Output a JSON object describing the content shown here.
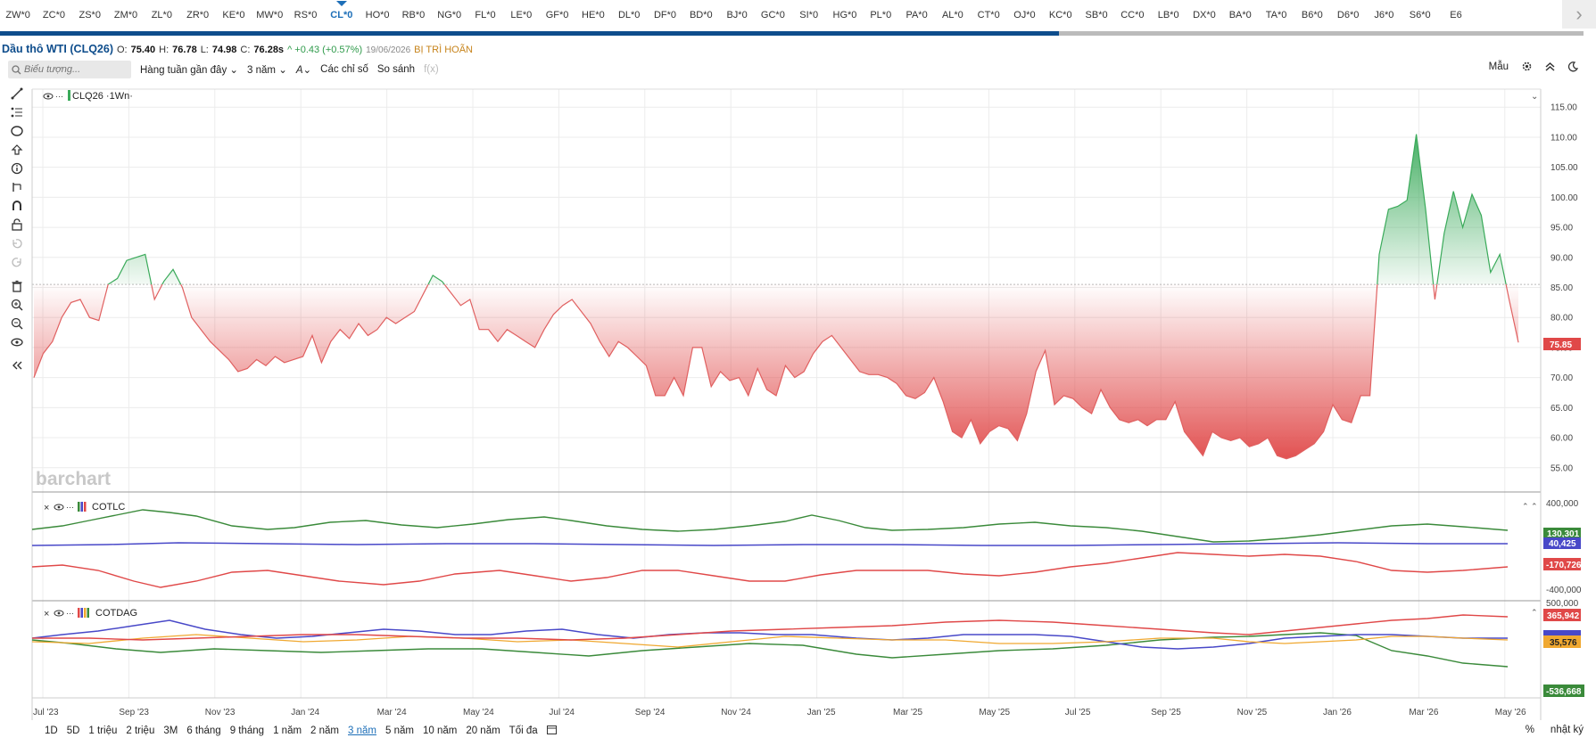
{
  "symbols": [
    "ZW*0",
    "ZC*0",
    "ZS*0",
    "ZM*0",
    "ZL*0",
    "ZR*0",
    "KE*0",
    "MW*0",
    "RS*0",
    "CL*0",
    "HO*0",
    "RB*0",
    "NG*0",
    "FL*0",
    "LE*0",
    "GF*0",
    "HE*0",
    "DL*0",
    "DF*0",
    "BD*0",
    "BJ*0",
    "GC*0",
    "SI*0",
    "HG*0",
    "PL*0",
    "PA*0",
    "AL*0",
    "CT*0",
    "OJ*0",
    "KC*0",
    "SB*0",
    "CC*0",
    "LB*0",
    "DX*0",
    "BA*0",
    "TA*0",
    "B6*0",
    "D6*0",
    "J6*0",
    "S6*0",
    "E6"
  ],
  "active_symbol": "CL*0",
  "quote": {
    "name": "Dầu thô WTI (CLQ26)",
    "open_label": "O:",
    "open": "75.40",
    "high_label": "H:",
    "high": "76.78",
    "low_label": "L:",
    "low": "74.98",
    "close_label": "C:",
    "close": "76.28s",
    "change": "^ +0.43 (+0.57%)",
    "date": "19/06/2026",
    "delay": "BỊ TRÌ HOÃN"
  },
  "toolbar": {
    "search_placeholder": "Biểu tượng...",
    "interval": "Hàng tuần gần đây",
    "range": "3 năm",
    "draw": "A",
    "studies": "Các chỉ số",
    "compare": "So sánh",
    "fx": "f(x)",
    "template": "Mẫu"
  },
  "panes": {
    "main_legend": "CLQ26 ·1Wn·",
    "cot1_legend": "COTLC",
    "cot2_legend": "COTDAG"
  },
  "watermark": "barchart",
  "colors": {
    "up": "#3aaa5a",
    "down": "#e04848",
    "accent": "#1d6fb8",
    "blue": "#4848c8",
    "orange": "#f0a830"
  },
  "chart_data": {
    "type": "area",
    "symbol": "CLQ26",
    "baseline": 85.5,
    "ylim": [
      52,
      118
    ],
    "yticks": [
      "115.00",
      "110.00",
      "105.00",
      "100.00",
      "95.00",
      "90.00",
      "85.00",
      "80.00",
      "75.00",
      "70.00",
      "65.00",
      "60.00",
      "55.00"
    ],
    "xticks": [
      "Jul '23",
      "Sep '23",
      "Nov '23",
      "Jan '24",
      "Mar '24",
      "May '24",
      "Jul '24",
      "Sep '24",
      "Nov '24",
      "Jan '25",
      "Mar '25",
      "May '25",
      "Jul '25",
      "Sep '25",
      "Nov '25",
      "Jan '26",
      "Mar '26",
      "May '26"
    ],
    "last_price": "75.85",
    "values": [
      70,
      74,
      76,
      80,
      82.5,
      83,
      80,
      79.5,
      85.5,
      86.5,
      89.5,
      90,
      90.5,
      83,
      86,
      88,
      85,
      80,
      78,
      76,
      74.5,
      73,
      71,
      71.5,
      73,
      72,
      73.5,
      72.5,
      73,
      73.5,
      77,
      72.5,
      76,
      78,
      76.5,
      79,
      77,
      78,
      80,
      79,
      80,
      81,
      84,
      87,
      86,
      84,
      82,
      83,
      78,
      78,
      76,
      78,
      77,
      76,
      75,
      78,
      80.5,
      82,
      83,
      81,
      79,
      76,
      73.5,
      76,
      75,
      73.5,
      72,
      67,
      67,
      70,
      67,
      75,
      75,
      68.5,
      71,
      69.5,
      70,
      67,
      71.5,
      68,
      67,
      72,
      70,
      71,
      74,
      76,
      77,
      75,
      73,
      71,
      70.5,
      70.5,
      70,
      69,
      67,
      66.5,
      67.5,
      70,
      66,
      61,
      60,
      63,
      59,
      61,
      62,
      61.5,
      59.5,
      64,
      71,
      74.5,
      65.5,
      67,
      66.5,
      65,
      64,
      68,
      65,
      63,
      62.5,
      63,
      62,
      63,
      63,
      66,
      61,
      59,
      57,
      61,
      60,
      59.5,
      60,
      58.5,
      59,
      60,
      57,
      56.5,
      57,
      58,
      59,
      61,
      65.5,
      63,
      62.5,
      67,
      67,
      90.5,
      98,
      98.5,
      99.5,
      110.5,
      98,
      83,
      94,
      101,
      95,
      100.5,
      97,
      87.5,
      90.5,
      83,
      75.85
    ],
    "cot_lc": {
      "legend": "COTLC",
      "last_values": [
        "130,301",
        "40,425",
        "-170,726"
      ],
      "yticks": [
        "400,000",
        "-400,000"
      ],
      "series_colors": [
        "#3a8a3a",
        "#4848c8",
        "#e04848"
      ]
    },
    "cot_dag": {
      "legend": "COTDAG",
      "last_values": [
        "365,942",
        "35,576",
        "-536,668"
      ],
      "yticks": [
        "500,000"
      ],
      "series_colors": [
        "#e04848",
        "#4848c8",
        "#f0a830",
        "#3a8a3a"
      ]
    }
  },
  "timeframes": [
    "1D",
    "5D",
    "1 triệu",
    "2 triệu",
    "3M",
    "6 tháng",
    "9 tháng",
    "1 năm",
    "2 năm",
    "3 năm",
    "5 năm",
    "10 năm",
    "20 năm",
    "Tối đa"
  ],
  "active_timeframe": "3 năm",
  "footer_right": [
    "%",
    "nhật ký"
  ]
}
